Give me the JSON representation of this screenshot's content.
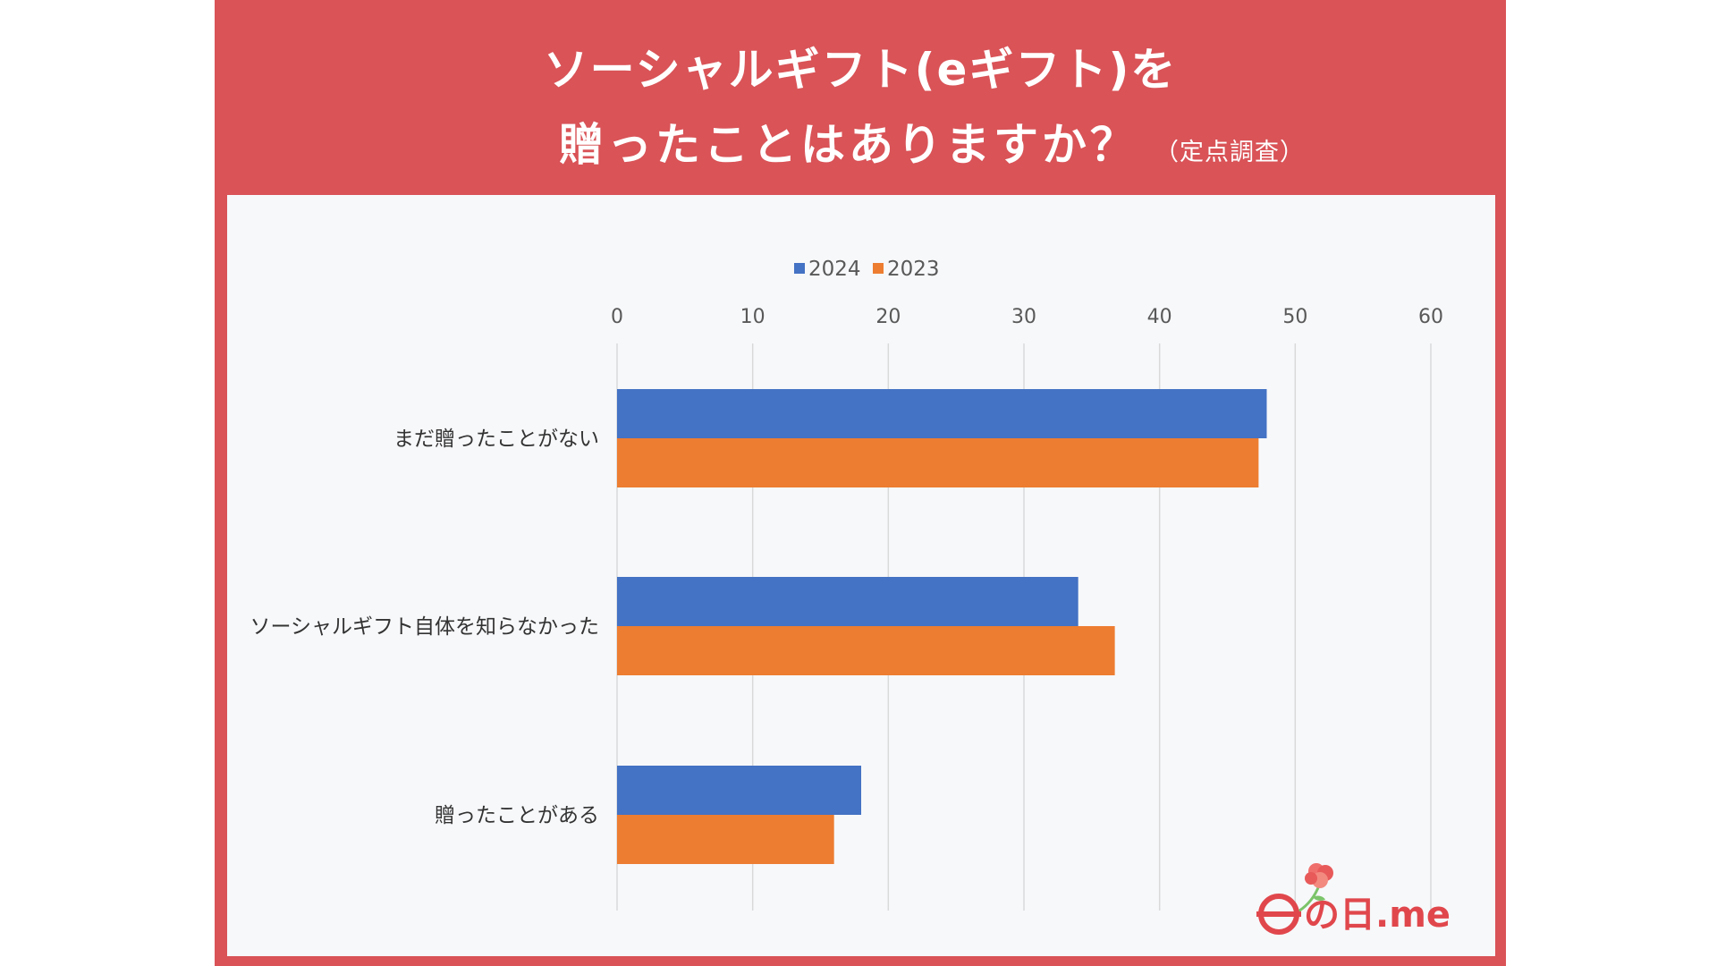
{
  "title": {
    "line1": "ソーシャルギフト(eギフト)を",
    "line2": "贈ったことはありますか？",
    "note": "（定点調査）"
  },
  "colors": {
    "frame": "#d95357",
    "panel": "#f7f8fa",
    "series_2024": "#4472c4",
    "series_2023": "#ed7d31",
    "grid": "#d9d9d9",
    "axis_text": "#595959",
    "category_text": "#333333"
  },
  "logo": {
    "text": "の日.me",
    "icon": "carnation-flower-icon"
  },
  "chart_data": {
    "type": "bar",
    "orientation": "horizontal",
    "title": "ソーシャルギフト(eギフト)を贈ったことはありますか？",
    "xlabel": "",
    "ylabel": "",
    "xlim": [
      0,
      60
    ],
    "ticks": [
      0,
      10,
      20,
      30,
      40,
      50,
      60
    ],
    "grid": true,
    "legend_position": "top",
    "categories": [
      "まだ贈ったことがない",
      "ソーシャルギフト自体を知らなかった",
      "贈ったことがある"
    ],
    "series": [
      {
        "name": "2024",
        "color": "#4472c4",
        "values": [
          47.9,
          34.0,
          18.0
        ]
      },
      {
        "name": "2023",
        "color": "#ed7d31",
        "values": [
          47.3,
          36.7,
          16.0
        ]
      }
    ]
  }
}
